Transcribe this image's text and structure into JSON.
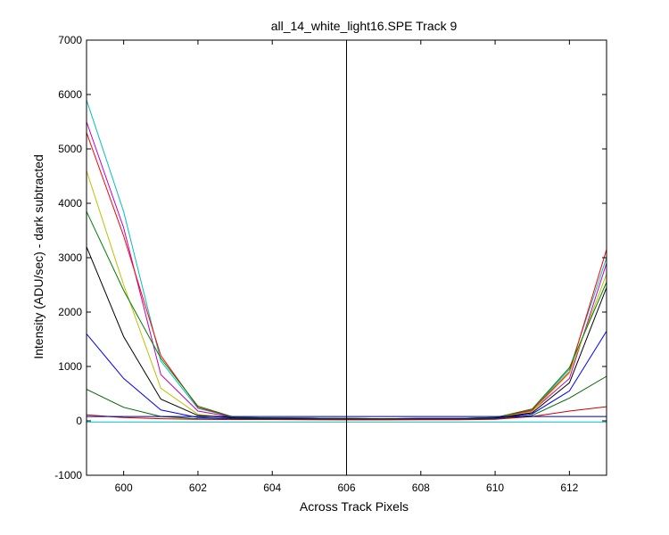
{
  "chart_data": {
    "type": "line",
    "title": "all_14_white_light16.SPE   Track 9",
    "xlabel": "Across Track Pixels",
    "ylabel": "Intensity (ADU/sec) - dark subtracted",
    "xlim": [
      599,
      613
    ],
    "ylim": [
      -1000,
      7000
    ],
    "xticks": [
      600,
      602,
      604,
      606,
      608,
      610,
      612
    ],
    "yticks": [
      -1000,
      0,
      1000,
      2000,
      3000,
      4000,
      5000,
      6000,
      7000
    ],
    "grid": false,
    "legend": "none",
    "vertical_marker_x": 606,
    "x": [
      599,
      600,
      601,
      602,
      603,
      604,
      605,
      606,
      607,
      608,
      609,
      610,
      611,
      612,
      613
    ],
    "series": [
      {
        "color": "#00bfbf",
        "values": [
          5900,
          3850,
          1100,
          230,
          60,
          55,
          50,
          45,
          40,
          45,
          45,
          60,
          200,
          950,
          3000
        ]
      },
      {
        "color": "#bf00bf",
        "values": [
          5500,
          3550,
          850,
          180,
          60,
          55,
          50,
          45,
          40,
          45,
          45,
          55,
          180,
          780,
          2900
        ]
      },
      {
        "color": "#ff0000",
        "values": [
          5300,
          3400,
          1200,
          250,
          60,
          55,
          50,
          45,
          40,
          45,
          45,
          60,
          200,
          900,
          3150
        ]
      },
      {
        "color": "#bfbf00",
        "values": [
          4600,
          2500,
          600,
          120,
          55,
          50,
          45,
          40,
          40,
          40,
          40,
          55,
          170,
          880,
          2700
        ]
      },
      {
        "color": "#008000",
        "values": [
          3850,
          2400,
          1150,
          270,
          60,
          55,
          50,
          45,
          40,
          45,
          45,
          60,
          220,
          980,
          2550
        ]
      },
      {
        "color": "#000000",
        "values": [
          3200,
          1550,
          400,
          100,
          50,
          45,
          40,
          35,
          35,
          40,
          40,
          50,
          150,
          700,
          2450
        ]
      },
      {
        "color": "#0000ff",
        "values": [
          1600,
          780,
          200,
          60,
          40,
          40,
          35,
          30,
          30,
          35,
          35,
          45,
          130,
          550,
          1650
        ]
      },
      {
        "color": "#006400",
        "values": [
          580,
          250,
          80,
          40,
          30,
          30,
          25,
          20,
          20,
          25,
          25,
          35,
          100,
          420,
          820
        ]
      },
      {
        "color": "#cc0000",
        "values": [
          110,
          60,
          40,
          30,
          25,
          25,
          20,
          20,
          20,
          20,
          20,
          30,
          80,
          180,
          260
        ]
      },
      {
        "color": "#000080",
        "values": [
          80,
          80,
          80,
          80,
          80,
          80,
          80,
          80,
          80,
          80,
          80,
          80,
          80,
          80,
          80
        ]
      },
      {
        "color": "#00bfbf",
        "values": [
          -20,
          -20,
          -20,
          -20,
          -20,
          -20,
          -20,
          -20,
          -20,
          -20,
          -20,
          -20,
          -20,
          -20,
          -20
        ]
      }
    ]
  }
}
